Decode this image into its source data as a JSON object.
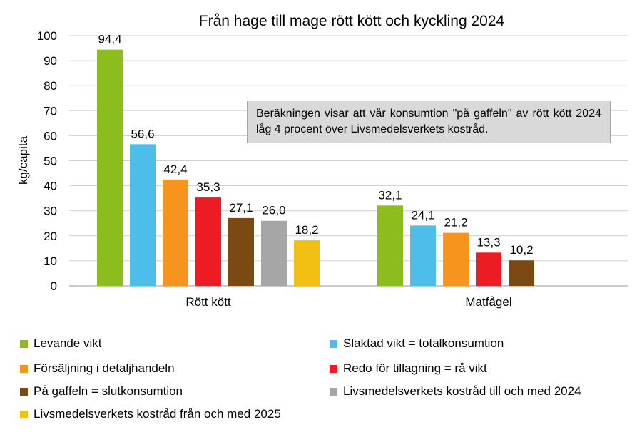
{
  "chart_data": {
    "type": "bar",
    "title": "Från hage till mage rött kött och kyckling 2024",
    "ylabel": "kg/capita",
    "xlabel": "",
    "ylim": [
      0,
      100
    ],
    "yticks": [
      "0",
      "10",
      "20",
      "30",
      "40",
      "50",
      "60",
      "70",
      "80",
      "90",
      "100"
    ],
    "grid": true,
    "legend_position": "bottom",
    "categories": [
      "Rött kött",
      "Matfågel"
    ],
    "series": [
      {
        "name": "Levande vikt",
        "color": "#8cbd1f",
        "values": [
          94.4,
          32.1
        ],
        "labels": [
          "94,4",
          "32,1"
        ]
      },
      {
        "name": "Slaktad vikt = totalkonsumtion",
        "color": "#4dbde9",
        "values": [
          56.6,
          24.1
        ],
        "labels": [
          "56,6",
          "24,1"
        ]
      },
      {
        "name": "Försäljning i detaljhandeln",
        "color": "#f7941d",
        "values": [
          42.4,
          21.2
        ],
        "labels": [
          "42,4",
          "21,2"
        ]
      },
      {
        "name": "Redo för tillagning = rå vikt",
        "color": "#ed1c24",
        "values": [
          35.3,
          13.3
        ],
        "labels": [
          "35,3",
          "13,3"
        ]
      },
      {
        "name": "På gaffeln = slutkonsumtion",
        "color": "#7b4a12",
        "values": [
          27.1,
          10.2
        ],
        "labels": [
          "27,1",
          "10,2"
        ]
      },
      {
        "name": "Livsmedelsverkets kostråd till och med 2024",
        "color": "#a6a6a6",
        "values": [
          26.0,
          null
        ],
        "labels": [
          "26,0",
          ""
        ]
      },
      {
        "name": "Livsmedelsverkets kostråd från och med 2025",
        "color": "#f2c012",
        "values": [
          18.2,
          null
        ],
        "labels": [
          "18,2",
          ""
        ]
      }
    ],
    "annotation": "Beräkningen visar att vår konsumtion \"på gaffeln\" av rött kött 2024 låg 4 procent över Livsmedelsverkets kostråd."
  }
}
